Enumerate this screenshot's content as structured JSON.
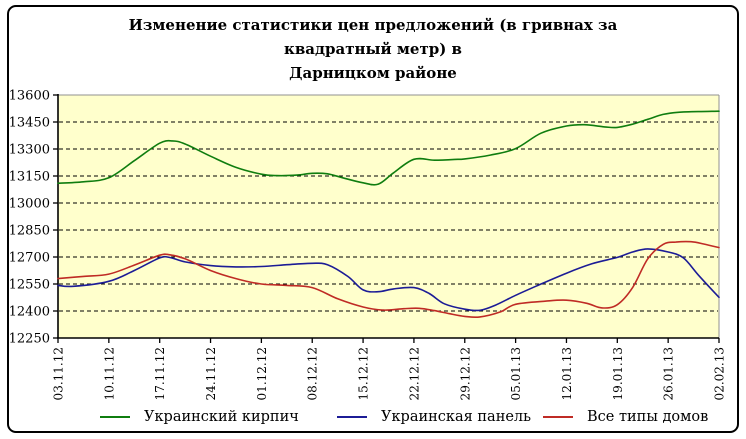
{
  "header": {
    "title_line1": "Изменение статистики цен предложений (в гривнах за квадратный метр) в",
    "title_line2": "Дарницком районе"
  },
  "chart_data": {
    "type": "line",
    "title": "Изменение статистики цен предложений (в гривнах за квадратный метр) в Дарницком районе",
    "categories": [
      "03.11.12",
      "10.11.12",
      "17.11.12",
      "24.11.12",
      "01.12.12",
      "08.12.12",
      "15.12.12",
      "22.12.12",
      "29.12.12",
      "05.01.13",
      "12.01.13",
      "19.01.13",
      "26.01.13",
      "02.02.13"
    ],
    "ylabel": "",
    "xlabel": "",
    "ylim": [
      12250,
      13600
    ],
    "y_step": 150,
    "y_ticks": [
      13600,
      13450,
      13300,
      13150,
      13000,
      12850,
      12700,
      12550,
      12400,
      12250
    ],
    "grid": "horizontal-dashed",
    "plot_bg": "#ffffcc",
    "grid_color": "#000000",
    "legend_position": "bottom",
    "series": [
      {
        "name": "Украинский кирпич",
        "color": "#0f7d0f",
        "weekly_values": [
          13110,
          13140,
          13335,
          13260,
          13160,
          13165,
          13110,
          13245,
          13245,
          13300,
          13430,
          13420,
          13498,
          13510
        ],
        "points": [
          [
            0,
            13110
          ],
          [
            0.5,
            13118
          ],
          [
            1,
            13140
          ],
          [
            1.5,
            13235
          ],
          [
            2,
            13332
          ],
          [
            2.25,
            13345
          ],
          [
            2.5,
            13328
          ],
          [
            3,
            13260
          ],
          [
            3.5,
            13198
          ],
          [
            4,
            13160
          ],
          [
            4.3,
            13152
          ],
          [
            4.7,
            13155
          ],
          [
            5,
            13165
          ],
          [
            5.3,
            13162
          ],
          [
            5.6,
            13140
          ],
          [
            6,
            13112
          ],
          [
            6.3,
            13105
          ],
          [
            6.6,
            13168
          ],
          [
            7,
            13243
          ],
          [
            7.4,
            13238
          ],
          [
            7.8,
            13242
          ],
          [
            8,
            13245
          ],
          [
            8.5,
            13266
          ],
          [
            9,
            13302
          ],
          [
            9.5,
            13388
          ],
          [
            10,
            13428
          ],
          [
            10.35,
            13435
          ],
          [
            10.75,
            13423
          ],
          [
            11,
            13420
          ],
          [
            11.3,
            13438
          ],
          [
            11.6,
            13465
          ],
          [
            11.9,
            13492
          ],
          [
            12.2,
            13504
          ],
          [
            12.6,
            13508
          ],
          [
            13,
            13510
          ]
        ]
      },
      {
        "name": "Украинская панель",
        "color": "#1c1c96",
        "weekly_values": [
          12542,
          12565,
          12695,
          12652,
          12647,
          12665,
          12517,
          12530,
          12410,
          12487,
          12610,
          12698,
          12728,
          12476
        ],
        "points": [
          [
            0,
            12542
          ],
          [
            0.3,
            12537
          ],
          [
            1,
            12565
          ],
          [
            1.5,
            12625
          ],
          [
            2,
            12695
          ],
          [
            2.2,
            12697
          ],
          [
            2.5,
            12673
          ],
          [
            3,
            12652
          ],
          [
            3.5,
            12645
          ],
          [
            4,
            12647
          ],
          [
            4.5,
            12657
          ],
          [
            5,
            12665
          ],
          [
            5.3,
            12657
          ],
          [
            5.7,
            12592
          ],
          [
            6,
            12517
          ],
          [
            6.3,
            12507
          ],
          [
            6.6,
            12523
          ],
          [
            7,
            12530
          ],
          [
            7.3,
            12497
          ],
          [
            7.6,
            12440
          ],
          [
            8,
            12410
          ],
          [
            8.3,
            12404
          ],
          [
            8.6,
            12432
          ],
          [
            9,
            12487
          ],
          [
            9.5,
            12550
          ],
          [
            10,
            12610
          ],
          [
            10.5,
            12662
          ],
          [
            11,
            12698
          ],
          [
            11.3,
            12728
          ],
          [
            11.6,
            12745
          ],
          [
            12,
            12728
          ],
          [
            12.3,
            12695
          ],
          [
            12.6,
            12598
          ],
          [
            13,
            12476
          ]
        ]
      },
      {
        "name": "Все типы домов",
        "color": "#bf2b25",
        "weekly_values": [
          12580,
          12605,
          12710,
          12625,
          12550,
          12530,
          12422,
          12415,
          12370,
          12437,
          12460,
          12435,
          12778,
          12752
        ],
        "points": [
          [
            0,
            12580
          ],
          [
            0.5,
            12592
          ],
          [
            1,
            12605
          ],
          [
            1.5,
            12655
          ],
          [
            2,
            12710
          ],
          [
            2.2,
            12712
          ],
          [
            2.5,
            12690
          ],
          [
            3,
            12625
          ],
          [
            3.5,
            12580
          ],
          [
            4,
            12550
          ],
          [
            4.5,
            12542
          ],
          [
            5,
            12530
          ],
          [
            5.5,
            12468
          ],
          [
            6,
            12422
          ],
          [
            6.4,
            12405
          ],
          [
            6.8,
            12413
          ],
          [
            7.1,
            12415
          ],
          [
            7.4,
            12402
          ],
          [
            7.7,
            12385
          ],
          [
            8,
            12370
          ],
          [
            8.3,
            12367
          ],
          [
            8.7,
            12395
          ],
          [
            9,
            12437
          ],
          [
            9.6,
            12455
          ],
          [
            10,
            12460
          ],
          [
            10.4,
            12443
          ],
          [
            10.7,
            12417
          ],
          [
            11,
            12435
          ],
          [
            11.3,
            12530
          ],
          [
            11.6,
            12690
          ],
          [
            11.9,
            12770
          ],
          [
            12.15,
            12783
          ],
          [
            12.45,
            12785
          ],
          [
            12.7,
            12772
          ],
          [
            13,
            12752
          ]
        ]
      }
    ]
  }
}
